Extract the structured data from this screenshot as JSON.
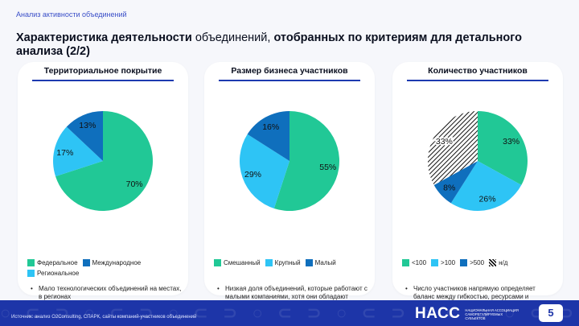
{
  "section_label": "Анализ активности объединений",
  "title": {
    "part1": "Характеристика деятельности",
    "part2": " объединений, ",
    "part3": "отобранных по критериям для детального анализа (2/2)"
  },
  "colors": {
    "dark_teal": "#0f6fbd",
    "green": "#21c896",
    "light_blue": "#2ec4f5",
    "navy": "#1d35a8",
    "nd_pattern": "hatched"
  },
  "cards": [
    {
      "header": "Территориальное покрытие",
      "chart_data": {
        "type": "pie",
        "slices": [
          {
            "label": "Федеральное",
            "value": 70,
            "value_label": "70%",
            "color": "#21c896"
          },
          {
            "label": "Региональное",
            "value": 17,
            "value_label": "17%",
            "color": "#2ec4f5"
          },
          {
            "label": "Международное",
            "value": 13,
            "value_label": "13%",
            "color": "#0f6fbd"
          }
        ]
      },
      "legend": [
        "Федеральное",
        "Международное",
        "Региональное"
      ],
      "note": "Мало технологических объединений на местах, в регионах"
    },
    {
      "header": "Размер бизнеса участников",
      "chart_data": {
        "type": "pie",
        "slices": [
          {
            "label": "Смешанный",
            "value": 55,
            "value_label": "55%",
            "color": "#21c896"
          },
          {
            "label": "Крупный",
            "value": 29,
            "value_label": "29%",
            "color": "#2ec4f5"
          },
          {
            "label": "Малый",
            "value": 16,
            "value_label": "16%",
            "color": "#0f6fbd"
          }
        ]
      },
      "legend": [
        "Смешанный",
        "Крупный",
        "Малый"
      ],
      "note": "Низкая доля объединений, которые работают с малыми компаниями, хотя они обладают наивысшим потенциалом, при этом являясь наиболее уязвимой категорией"
    },
    {
      "header": "Количество участников",
      "chart_data": {
        "type": "pie",
        "slices": [
          {
            "label": "<100",
            "value": 33,
            "value_label": "33%",
            "color": "#21c896"
          },
          {
            "label": ">100",
            "value": 26,
            "value_label": "26%",
            "color": "#2ec4f5"
          },
          {
            "label": ">500",
            "value": 8,
            "value_label": "8%",
            "color": "#0f6fbd"
          },
          {
            "label": "н/д",
            "value": 33,
            "value_label": "33%",
            "color": "hatched"
          }
        ]
      },
      "legend": [
        "<100",
        ">100",
        ">500",
        "н/д"
      ],
      "note": "Число участников напрямую определяет баланс между гибкостью, ресурсами и влиянием: мелкие быстро реагируют, средние эффективно управляют, а крупные лоббируют и стандартизируют отрасль"
    }
  ],
  "footer": {
    "source": "Источник: анализ O2Consulting, СПАРК, сайты компаний-участников объединений",
    "logo_mark": "НАСС",
    "logo_text": "Национальная ассоциация саморегулируемых субъектов",
    "page_number": "5"
  }
}
